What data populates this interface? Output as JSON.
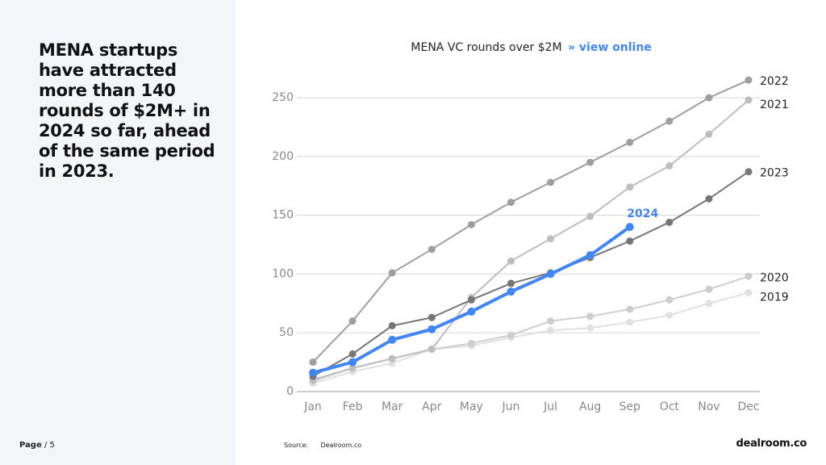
{
  "slide": {
    "headline": "MENA startups have attracted more than 140 rounds of $2M+ in 2024 so far, ahead of the same period in 2023.",
    "page_label": "Page",
    "page_number": "/ 5",
    "source_label": "Source:",
    "source": "Dealroom.co",
    "logo": "dealroom.co"
  },
  "chart_data": {
    "type": "line",
    "title": "MENA VC rounds over $2M",
    "link": "» view online",
    "categories": [
      "Jan",
      "Feb",
      "Mar",
      "Apr",
      "May",
      "Jun",
      "Jul",
      "Aug",
      "Sep",
      "Oct",
      "Nov",
      "Dec"
    ],
    "ylim": [
      0,
      270
    ],
    "yticks": [
      0,
      50,
      100,
      150,
      200,
      250
    ],
    "grid": true,
    "series": [
      {
        "name": "2019",
        "color": "#e0e0e0",
        "values": [
          7,
          17,
          24,
          36,
          39,
          46,
          52,
          54,
          59,
          65,
          75,
          84
        ]
      },
      {
        "name": "2020",
        "color": "#cdcdcd",
        "values": [
          9,
          20,
          28,
          36,
          41,
          48,
          60,
          64,
          70,
          78,
          87,
          98
        ]
      },
      {
        "name": "2021",
        "color": "#bdbdbd",
        "values": [
          10,
          20,
          28,
          36,
          80,
          111,
          130,
          149,
          174,
          192,
          219,
          248
        ]
      },
      {
        "name": "2022",
        "color": "#9e9e9e",
        "values": [
          25,
          60,
          101,
          121,
          142,
          161,
          178,
          195,
          212,
          230,
          250,
          265
        ]
      },
      {
        "name": "2023",
        "color": "#767676",
        "values": [
          13,
          32,
          56,
          63,
          78,
          92,
          101,
          114,
          128,
          144,
          164,
          187
        ]
      },
      {
        "name": "2024",
        "color": "#4285f4",
        "values": [
          16,
          25,
          44,
          53,
          68,
          85,
          100,
          116,
          140,
          null,
          null,
          null
        ]
      }
    ]
  }
}
